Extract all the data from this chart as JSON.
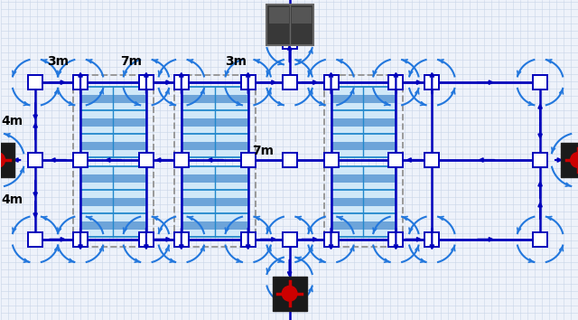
{
  "bg_color": "#eef2fa",
  "grid_color": "#c8d4e8",
  "blue": "#0000bb",
  "blue_light": "#2277dd",
  "shelf_fill": "#d0e8f8",
  "shelf_stroke": "#2288cc",
  "aisle_fill": "#4488cc",
  "dashed_gray": "#999999",
  "figsize": [
    6.4,
    3.54
  ],
  "dpi": 100,
  "xlim": [
    0,
    640
  ],
  "ylim": [
    0,
    354
  ]
}
